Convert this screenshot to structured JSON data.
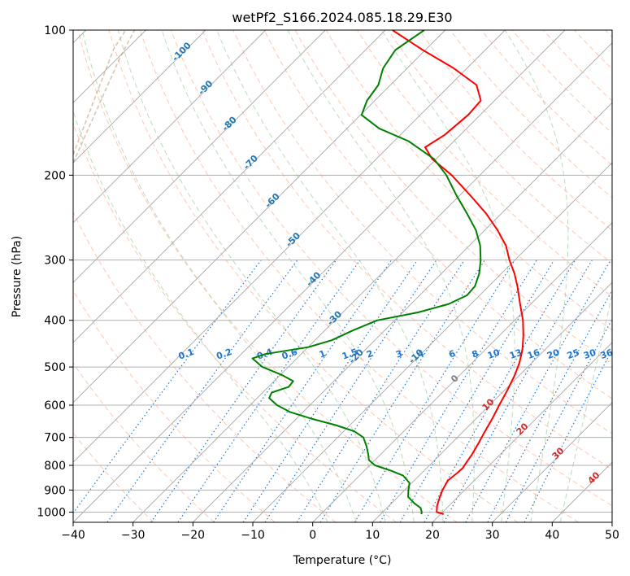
{
  "chart_data": {
    "type": "line",
    "subtype": "skew-t log-p",
    "title": "wetPf2_S166.2024.085.18.29.E30",
    "xlabel": "Temperature (°C)",
    "ylabel": "Pressure (hPa)",
    "xlim": [
      -40,
      50
    ],
    "ylim": [
      1050,
      100
    ],
    "y_scale": "log",
    "skew_deg_per_log_unit": 45,
    "grid": true,
    "x_ticks": [
      -40,
      -30,
      -20,
      -10,
      0,
      10,
      20,
      30,
      40,
      50
    ],
    "y_ticks": [
      1000,
      900,
      800,
      700,
      600,
      500,
      400,
      300,
      200,
      100
    ],
    "series": [
      {
        "key": "temperature",
        "color": "#ff0000",
        "points": [
          [
            1010,
            20.5
          ],
          [
            1000,
            19.0
          ],
          [
            970,
            18.0
          ],
          [
            930,
            17.0
          ],
          [
            900,
            16.3
          ],
          [
            860,
            15.6
          ],
          [
            830,
            15.9
          ],
          [
            810,
            16.0
          ],
          [
            790,
            15.7
          ],
          [
            760,
            15.3
          ],
          [
            720,
            14.5
          ],
          [
            680,
            13.6
          ],
          [
            640,
            12.7
          ],
          [
            600,
            11.6
          ],
          [
            560,
            10.5
          ],
          [
            520,
            9.2
          ],
          [
            490,
            7.9
          ],
          [
            460,
            6.2
          ],
          [
            430,
            4.0
          ],
          [
            400,
            1.4
          ],
          [
            370,
            -1.8
          ],
          [
            340,
            -5.2
          ],
          [
            320,
            -7.8
          ],
          [
            300,
            -10.9
          ],
          [
            280,
            -13.9
          ],
          [
            260,
            -17.9
          ],
          [
            240,
            -22.6
          ],
          [
            220,
            -28.3
          ],
          [
            200,
            -34.7
          ],
          [
            185,
            -40.7
          ],
          [
            175,
            -43.8
          ],
          [
            165,
            -42.6
          ],
          [
            150,
            -42.0
          ],
          [
            140,
            -42.3
          ],
          [
            130,
            -45.6
          ],
          [
            120,
            -52.2
          ],
          [
            110,
            -60.4
          ],
          [
            100,
            -68.8
          ]
        ]
      },
      {
        "key": "dewpoint",
        "color": "#008000",
        "points": [
          [
            1010,
            16.8
          ],
          [
            1000,
            16.5
          ],
          [
            980,
            15.6
          ],
          [
            960,
            13.9
          ],
          [
            930,
            11.7
          ],
          [
            900,
            10.6
          ],
          [
            870,
            9.6
          ],
          [
            840,
            7.3
          ],
          [
            820,
            4.4
          ],
          [
            800,
            0.9
          ],
          [
            780,
            -1.0
          ],
          [
            760,
            -2.0
          ],
          [
            730,
            -3.7
          ],
          [
            700,
            -5.7
          ],
          [
            680,
            -8.2
          ],
          [
            660,
            -12.4
          ],
          [
            640,
            -17.5
          ],
          [
            620,
            -22.2
          ],
          [
            600,
            -25.5
          ],
          [
            580,
            -28.0
          ],
          [
            565,
            -28.5
          ],
          [
            550,
            -26.6
          ],
          [
            535,
            -26.8
          ],
          [
            520,
            -29.6
          ],
          [
            500,
            -34.3
          ],
          [
            480,
            -37.4
          ],
          [
            470,
            -36.0
          ],
          [
            455,
            -30.0
          ],
          [
            440,
            -27.2
          ],
          [
            420,
            -25.3
          ],
          [
            400,
            -22.9
          ],
          [
            385,
            -17.4
          ],
          [
            370,
            -13.7
          ],
          [
            355,
            -12.1
          ],
          [
            340,
            -12.3
          ],
          [
            320,
            -13.7
          ],
          [
            300,
            -15.7
          ],
          [
            280,
            -18.2
          ],
          [
            260,
            -21.5
          ],
          [
            240,
            -25.8
          ],
          [
            220,
            -30.6
          ],
          [
            200,
            -35.6
          ],
          [
            185,
            -40.4
          ],
          [
            170,
            -47.6
          ],
          [
            160,
            -54.6
          ],
          [
            150,
            -59.8
          ],
          [
            140,
            -61.3
          ],
          [
            130,
            -62.0
          ],
          [
            120,
            -64.0
          ],
          [
            110,
            -65.0
          ],
          [
            100,
            -63.5
          ]
        ]
      }
    ],
    "dry_adiabats": [
      -30,
      -20,
      -10,
      0,
      10,
      20,
      30,
      40,
      50,
      60,
      70,
      80,
      90,
      100,
      110,
      120,
      130,
      140,
      150,
      160,
      170,
      180,
      190,
      200
    ],
    "moist_adiabats": [
      0,
      5,
      10,
      15,
      20,
      25,
      30,
      35,
      40
    ],
    "mixing_ratio_lines": [
      0.1,
      0.2,
      0.4,
      0.6,
      1,
      1.5,
      2,
      3,
      4,
      6,
      8,
      10,
      13,
      16,
      20,
      25,
      30,
      36
    ],
    "mixing_ratio_labels": [
      "0.1",
      "0.2",
      "0.4",
      "0.6",
      "1",
      "1.5",
      "2",
      "3",
      "4",
      "6",
      "8",
      "10",
      "13",
      "16",
      "20",
      "25",
      "30",
      "36"
    ],
    "isotherm_labels": {
      "blue": [
        "-100",
        "-90",
        "-80",
        "-70",
        "-60",
        "-50",
        "-40",
        "-30",
        "-20",
        "-10"
      ],
      "gray": [
        "0"
      ],
      "red": [
        "10",
        "20",
        "30",
        "40"
      ]
    },
    "colors": {
      "isotherm": "#a6a6a6",
      "dry_adiabat": "#ff9973",
      "moist_adiabat": "#66b266",
      "mixing_ratio": "#1f77d4",
      "blue_label": "#1f77b4",
      "red_label": "#d62728",
      "gray_label": "#808080",
      "brown_curve": "#b48c64"
    }
  }
}
